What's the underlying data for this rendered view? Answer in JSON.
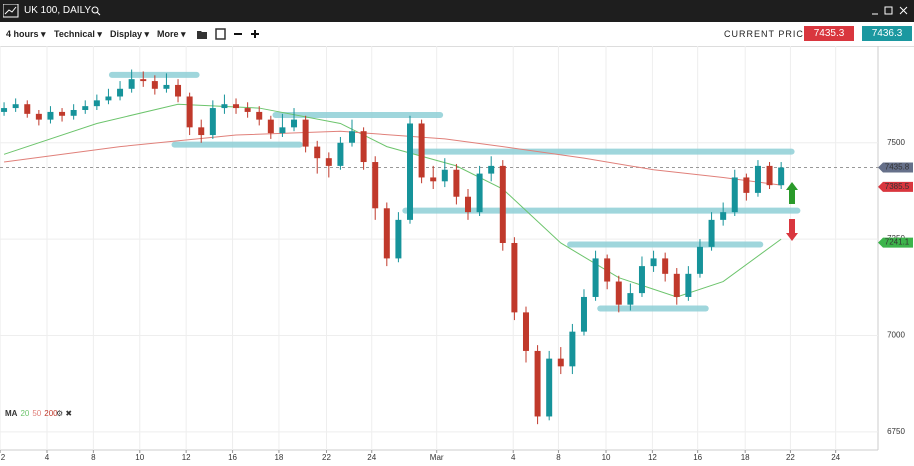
{
  "header": {
    "title": "UK 100, DAILY"
  },
  "toolbar": {
    "timeframe": "4 hours",
    "technical": "Technical",
    "display": "Display",
    "more": "More",
    "current_price_label": "CURRENT PRICE:",
    "sell": "7435.3",
    "buy": "7436.3"
  },
  "chart_data": {
    "type": "candlestick",
    "open": [
      7580,
      7590,
      7600,
      7575,
      7560,
      7580,
      7570,
      7585,
      7595,
      7610,
      7620,
      7640,
      7665,
      7660,
      7640,
      7650,
      7620,
      7540,
      7520,
      7590,
      7600,
      7590,
      7580,
      7560,
      7525,
      7540,
      7560,
      7490,
      7460,
      7440,
      7500,
      7530,
      7450,
      7330,
      7200,
      7300,
      7550,
      7410,
      7400,
      7430,
      7360,
      7320,
      7420,
      7440,
      7240,
      7060,
      6960,
      6790,
      6940,
      6920,
      7010,
      7100,
      7200,
      7140,
      7080,
      7110,
      7180,
      7200,
      7160,
      7100,
      7160,
      7230,
      7300,
      7320,
      7410,
      7370,
      7440,
      7390
    ],
    "high": [
      7605,
      7615,
      7610,
      7585,
      7595,
      7590,
      7600,
      7610,
      7625,
      7640,
      7660,
      7690,
      7685,
      7675,
      7680,
      7665,
      7630,
      7560,
      7610,
      7625,
      7615,
      7605,
      7595,
      7570,
      7575,
      7590,
      7570,
      7505,
      7475,
      7515,
      7560,
      7540,
      7465,
      7345,
      7320,
      7570,
      7560,
      7440,
      7460,
      7445,
      7380,
      7440,
      7465,
      7455,
      7255,
      7075,
      6975,
      6960,
      6970,
      7030,
      7120,
      7220,
      7210,
      7155,
      7135,
      7205,
      7220,
      7215,
      7175,
      7180,
      7250,
      7320,
      7345,
      7430,
      7420,
      7455,
      7450,
      7450
    ],
    "low": [
      7570,
      7580,
      7565,
      7545,
      7550,
      7555,
      7560,
      7575,
      7585,
      7600,
      7610,
      7630,
      7645,
      7625,
      7630,
      7605,
      7520,
      7500,
      7510,
      7575,
      7575,
      7565,
      7545,
      7510,
      7515,
      7530,
      7475,
      7420,
      7410,
      7430,
      7490,
      7430,
      7300,
      7180,
      7190,
      7290,
      7395,
      7380,
      7385,
      7340,
      7300,
      7310,
      7400,
      7220,
      7040,
      6930,
      6770,
      6780,
      6900,
      6900,
      7000,
      7090,
      7120,
      7060,
      7065,
      7100,
      7165,
      7140,
      7080,
      7090,
      7150,
      7220,
      7285,
      7310,
      7350,
      7360,
      7380,
      7380
    ],
    "close": [
      7590,
      7600,
      7575,
      7560,
      7580,
      7570,
      7585,
      7595,
      7610,
      7620,
      7640,
      7665,
      7660,
      7640,
      7650,
      7620,
      7540,
      7520,
      7590,
      7600,
      7590,
      7580,
      7560,
      7525,
      7540,
      7560,
      7490,
      7460,
      7440,
      7500,
      7530,
      7450,
      7330,
      7200,
      7300,
      7550,
      7410,
      7400,
      7430,
      7360,
      7320,
      7420,
      7440,
      7240,
      7060,
      6960,
      6790,
      6940,
      6920,
      7010,
      7100,
      7200,
      7140,
      7080,
      7110,
      7180,
      7200,
      7160,
      7100,
      7160,
      7230,
      7300,
      7320,
      7410,
      7370,
      7440,
      7390,
      7435.8
    ],
    "up_color": "#16939a",
    "down_color": "#c0392b",
    "xlim": [
      -0.35,
      75.35
    ],
    "ylim": [
      6703,
      7751
    ],
    "xticks": [
      {
        "value": -0.34,
        "label": "2"
      },
      {
        "value": 3.7,
        "label": "4"
      },
      {
        "value": 7.7,
        "label": "8"
      },
      {
        "value": 11.7,
        "label": "10"
      },
      {
        "value": 15.7,
        "label": "12"
      },
      {
        "value": 19.7,
        "label": "16"
      },
      {
        "value": 23.7,
        "label": "18"
      },
      {
        "value": 27.8,
        "label": "22"
      },
      {
        "value": 31.7,
        "label": "24"
      },
      {
        "value": 37.3,
        "label": "Mar"
      },
      {
        "value": 43.9,
        "label": "4"
      },
      {
        "value": 47.8,
        "label": "8"
      },
      {
        "value": 51.9,
        "label": "10"
      },
      {
        "value": 55.9,
        "label": "12"
      },
      {
        "value": 59.8,
        "label": "16"
      },
      {
        "value": 63.9,
        "label": "18"
      },
      {
        "value": 67.8,
        "label": "22"
      },
      {
        "value": 71.7,
        "label": "24"
      }
    ],
    "yticks": [
      7500,
      7250,
      7000,
      6750
    ],
    "grid": true,
    "legend_title": "MA",
    "series": [
      {
        "name": "20",
        "color": "#6cc46c",
        "x": [
          0,
          8,
          15,
          22,
          29,
          33,
          39,
          43,
          48,
          53,
          58,
          62,
          67
        ],
        "values": [
          7470,
          7550,
          7600,
          7590,
          7550,
          7490,
          7440,
          7380,
          7240,
          7150,
          7100,
          7140,
          7250
        ]
      },
      {
        "name": "50",
        "color": "#e0807a",
        "x": [
          0,
          10,
          20,
          29,
          38,
          43,
          50,
          56,
          62,
          67
        ],
        "values": [
          7450,
          7490,
          7520,
          7530,
          7510,
          7490,
          7460,
          7430,
          7410,
          7390
        ]
      },
      {
        "name": "200",
        "color": "#c0392b",
        "x": [],
        "values": []
      }
    ],
    "levels": [
      {
        "x": [
          9.3,
          16.6
        ],
        "y": 7676
      },
      {
        "x": [
          14.7,
          25.5
        ],
        "y": 7495
      },
      {
        "x": [
          23.4,
          37.6
        ],
        "y": 7572
      },
      {
        "x": [
          35,
          67.9
        ],
        "y": 7477
      },
      {
        "x": [
          34.6,
          68.4
        ],
        "y": 7324
      },
      {
        "x": [
          48.8,
          65.2
        ],
        "y": 7236
      },
      {
        "x": [
          51.4,
          60.5
        ],
        "y": 7070
      }
    ],
    "current_price": 7435.8,
    "price_flags": [
      {
        "value": 7435.8,
        "color": "#66708a"
      },
      {
        "value": 7385.5,
        "color": "#d9363e"
      },
      {
        "value": 7241.1,
        "color": "#3cb44b"
      }
    ]
  }
}
